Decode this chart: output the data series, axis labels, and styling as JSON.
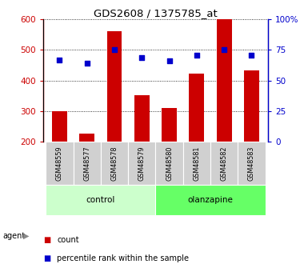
{
  "title": "GDS2608 / 1375785_at",
  "samples": [
    "GSM48559",
    "GSM48577",
    "GSM48578",
    "GSM48579",
    "GSM48580",
    "GSM48581",
    "GSM48582",
    "GSM48583"
  ],
  "groups": [
    "control",
    "control",
    "control",
    "control",
    "olanzapine",
    "olanzapine",
    "olanzapine",
    "olanzapine"
  ],
  "count_values": [
    300,
    226,
    560,
    352,
    310,
    422,
    600,
    432
  ],
  "percentile_values": [
    67,
    64,
    75,
    69,
    66,
    71,
    75,
    71
  ],
  "ylim_left": [
    200,
    600
  ],
  "ylim_right": [
    0,
    100
  ],
  "yticks_left": [
    200,
    300,
    400,
    500,
    600
  ],
  "yticks_right": [
    0,
    25,
    50,
    75,
    100
  ],
  "bar_color": "#cc0000",
  "scatter_color": "#0000cc",
  "control_color": "#ccffcc",
  "olanzapine_color": "#66ff66",
  "sample_box_color": "#d0d0d0",
  "group_label": "agent",
  "legend_count": "count",
  "legend_percentile": "percentile rank within the sample",
  "bar_width": 0.55,
  "agent_arrow": "▶"
}
